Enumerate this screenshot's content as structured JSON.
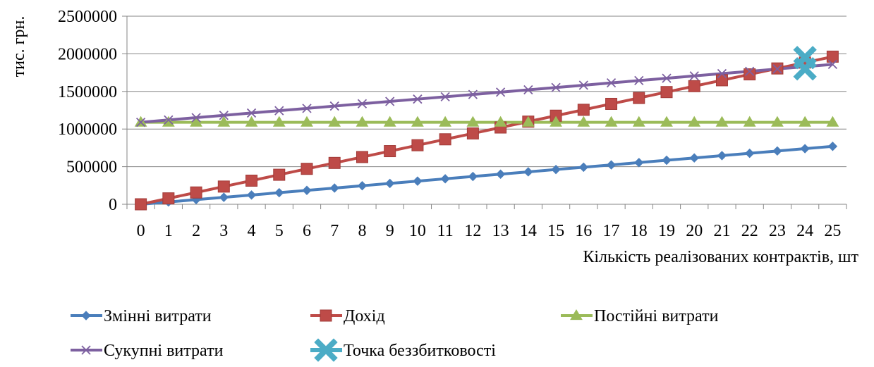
{
  "chart_data": {
    "type": "line",
    "xlabel": "Кількість реалізованих контрактів, шт",
    "ylabel": "тис. грн.",
    "x": [
      0,
      1,
      2,
      3,
      4,
      5,
      6,
      7,
      8,
      9,
      10,
      11,
      12,
      13,
      14,
      15,
      16,
      17,
      18,
      19,
      20,
      21,
      22,
      23,
      24,
      25
    ],
    "ylim": [
      0,
      2500000
    ],
    "yticks": [
      0,
      500000,
      1000000,
      1500000,
      2000000,
      2500000
    ],
    "ytick_labels": [
      "0",
      "500000",
      "1000000",
      "1500000",
      "2000000",
      "2500000"
    ],
    "grid": true,
    "legend_position": "bottom",
    "series": [
      {
        "name": "Змінні витрати",
        "color": "#4a7ebb",
        "marker": "diamond",
        "values": [
          0,
          30800,
          61600,
          92400,
          123200,
          154000,
          184800,
          215600,
          246400,
          277200,
          308000,
          338800,
          369600,
          400400,
          431200,
          462000,
          492800,
          523600,
          554400,
          585200,
          616000,
          646800,
          677600,
          708400,
          739200,
          770000
        ]
      },
      {
        "name": "Дохід",
        "color": "#be4b48",
        "marker": "square",
        "values": [
          0,
          78500,
          157000,
          235500,
          314000,
          392500,
          471000,
          549500,
          628000,
          706500,
          785000,
          863500,
          942000,
          1020500,
          1099000,
          1177500,
          1256000,
          1334500,
          1413000,
          1491500,
          1570000,
          1648500,
          1727000,
          1805500,
          1884000,
          1962500
        ]
      },
      {
        "name": "Постійні витрати",
        "color": "#9bbb59",
        "marker": "triangle",
        "values": [
          1090000,
          1090000,
          1090000,
          1090000,
          1090000,
          1090000,
          1090000,
          1090000,
          1090000,
          1090000,
          1090000,
          1090000,
          1090000,
          1090000,
          1090000,
          1090000,
          1090000,
          1090000,
          1090000,
          1090000,
          1090000,
          1090000,
          1090000,
          1090000,
          1090000,
          1090000
        ]
      },
      {
        "name": "Сукупні витрати",
        "color": "#7d60a0",
        "marker": "x",
        "values": [
          1090000,
          1120800,
          1151600,
          1182400,
          1213200,
          1244000,
          1274800,
          1305600,
          1336400,
          1367200,
          1398000,
          1428800,
          1459600,
          1490400,
          1521200,
          1552000,
          1582800,
          1613600,
          1644400,
          1675200,
          1706000,
          1736800,
          1767600,
          1798400,
          1829200,
          1860000
        ]
      },
      {
        "name": "Точка беззбитковості",
        "color": "#4bacc6",
        "marker": "bigx",
        "points": [
          [
            24,
            1950000
          ],
          [
            24,
            1800000
          ]
        ]
      }
    ]
  }
}
